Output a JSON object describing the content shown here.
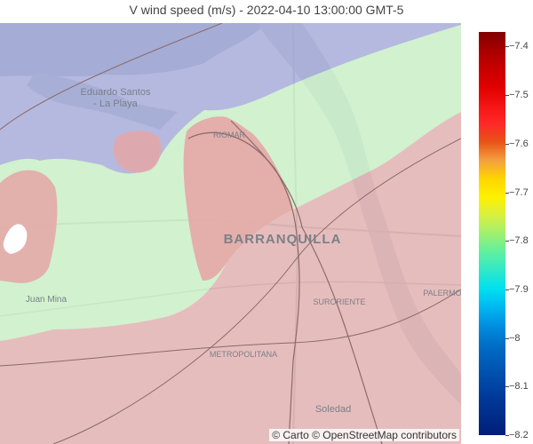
{
  "title": "V wind speed (m/s) - 2022-04-10 13:00:00 GMT-5",
  "attribution": "© Carto © OpenStreetMap contributors",
  "places": {
    "eduardo_santos_1": "Eduardo Santos",
    "eduardo_santos_2": "- La Playa",
    "riomar": "RIOMAR",
    "barranquilla": "BARRANQUILLA",
    "juan_mina": "Juan Mina",
    "suroriente": "SURORIENTE",
    "metropolitana": "METROPOLITANA",
    "soledad": "Soledad",
    "palermo": "PALERMO"
  },
  "colorbar": {
    "min": -8.2,
    "max": -7.37,
    "ticks": [
      {
        "value": -7.4,
        "label": "−7.4"
      },
      {
        "value": -7.5,
        "label": "−7.5"
      },
      {
        "value": -7.6,
        "label": "−7.6"
      },
      {
        "value": -7.7,
        "label": "−7.7"
      },
      {
        "value": -7.8,
        "label": "−7.8"
      },
      {
        "value": -7.9,
        "label": "−7.9"
      },
      {
        "value": -8.0,
        "label": "−8"
      },
      {
        "value": -8.1,
        "label": "−8.1"
      },
      {
        "value": -8.2,
        "label": "−8.2"
      }
    ],
    "colors": [
      "#800000",
      "#a80000",
      "#c80000",
      "#e00000",
      "#f41414",
      "#ff2828",
      "#e85418",
      "#f4a040",
      "#ffd400",
      "#fff000",
      "#d8f040",
      "#a0f070",
      "#60f0a0",
      "#30e8c8",
      "#00e0f0",
      "#00b8f0",
      "#0090e0",
      "#0070c8",
      "#005cb8",
      "#004aa8",
      "#003898",
      "#002c88",
      "#001e78"
    ]
  },
  "zones": {
    "zone_blue": "#9aa0da",
    "zone_green": "#c8f5c4",
    "zone_red": "#e5a6a6",
    "zone_white": "#ffffff"
  }
}
